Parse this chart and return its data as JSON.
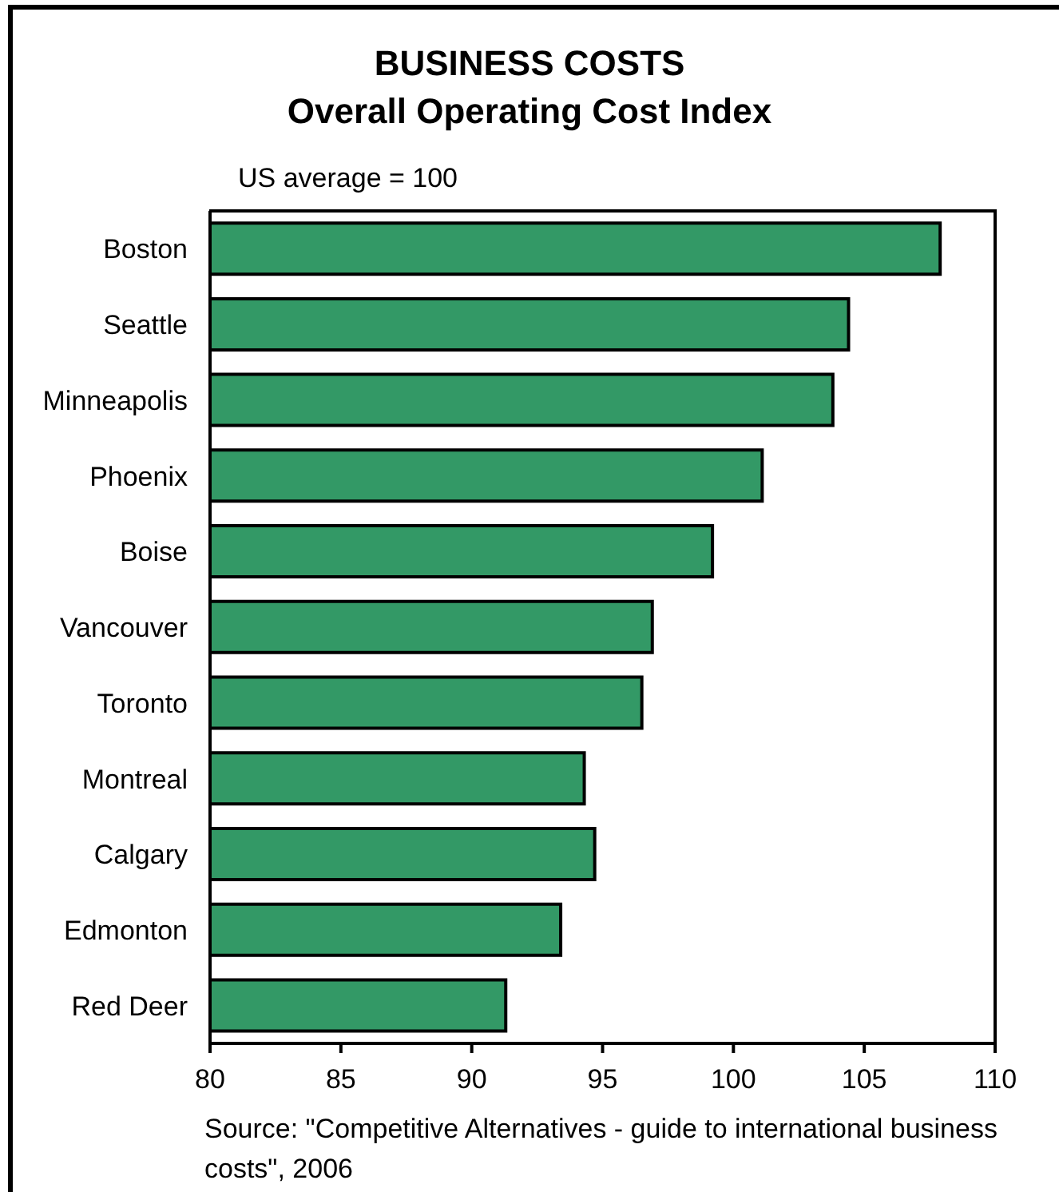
{
  "chart_data": {
    "type": "bar",
    "orientation": "horizontal",
    "title": "BUSINESS COSTS",
    "subtitle": "Overall Operating Cost Index",
    "categories": [
      "Boston",
      "Seattle",
      "Minneapolis",
      "Phoenix",
      "Boise",
      "Vancouver",
      "Toronto",
      "Montreal",
      "Calgary",
      "Edmonton",
      "Red Deer"
    ],
    "values": [
      107.9,
      104.4,
      103.8,
      101.1,
      99.2,
      96.9,
      96.5,
      94.3,
      94.7,
      93.4,
      91.3
    ],
    "color": "#339966",
    "xlim": [
      80,
      110
    ],
    "xticks": [
      80,
      85,
      90,
      95,
      100,
      105,
      110
    ],
    "annotations": [
      "US average = 100",
      "Source: \"Competitive Alternatives - guide to international business costs\", 2006"
    ]
  }
}
